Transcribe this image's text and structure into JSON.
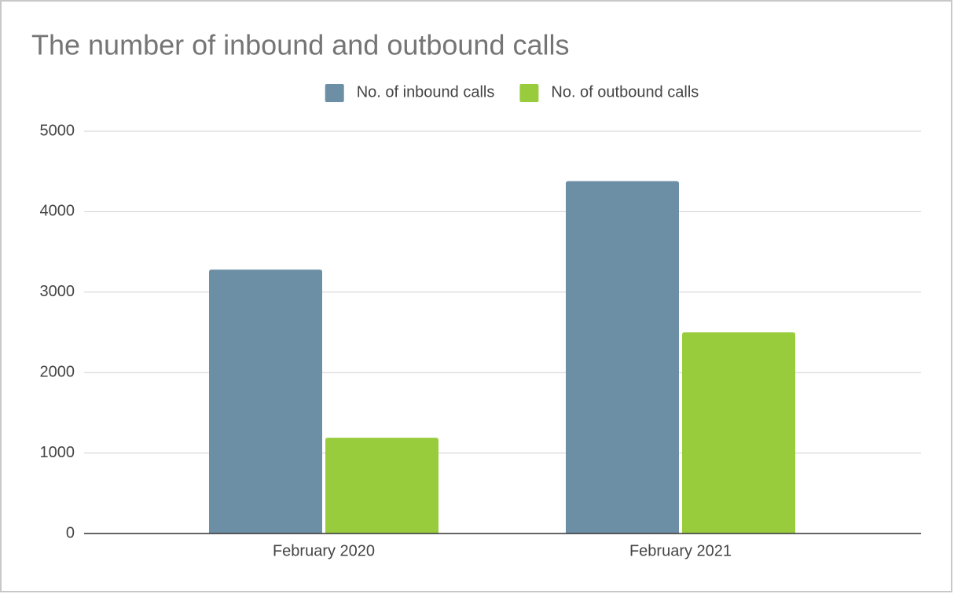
{
  "chart_data": {
    "type": "bar",
    "title": "The number of inbound and outbound calls",
    "categories": [
      "February 2020",
      "February 2021"
    ],
    "series": [
      {
        "name": "No. of inbound calls",
        "color": "#6d8fa5",
        "values": [
          3280,
          4380
        ]
      },
      {
        "name": "No. of outbound calls",
        "color": "#99cc3d",
        "values": [
          1190,
          2500
        ]
      }
    ],
    "ylim": [
      0,
      5000
    ],
    "yticks": [
      0,
      1000,
      2000,
      3000,
      4000,
      5000
    ],
    "grid": true,
    "legend": "top"
  }
}
